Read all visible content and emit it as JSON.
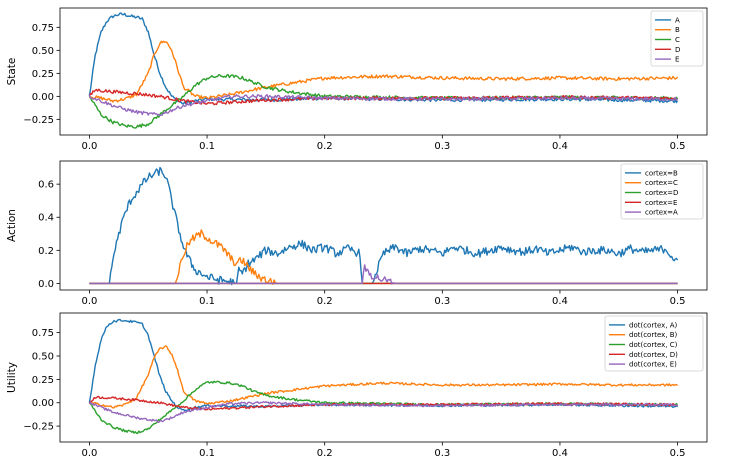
{
  "colors": [
    "#1f77b4",
    "#ff7f0e",
    "#2ca02c",
    "#d62728",
    "#9467bd"
  ],
  "chart_data": [
    {
      "type": "line",
      "ylabel": "State",
      "xlim": [
        -0.025,
        0.525
      ],
      "ylim": [
        -0.42,
        0.96
      ],
      "xticks": [
        0.0,
        0.1,
        0.2,
        0.3,
        0.4,
        0.5
      ],
      "xtick_labels": [
        "0.0",
        "0.1",
        "0.2",
        "0.3",
        "0.4",
        "0.5"
      ],
      "yticks": [
        -0.25,
        0.0,
        0.25,
        0.5,
        0.75
      ],
      "ytick_labels": [
        "−0.25",
        "0.00",
        "0.25",
        "0.50",
        "0.75"
      ],
      "legend_position": "top-right",
      "series": [
        {
          "name": "A",
          "x": [
            0.0,
            0.005,
            0.01,
            0.015,
            0.02,
            0.025,
            0.03,
            0.035,
            0.04,
            0.045,
            0.05,
            0.055,
            0.06,
            0.065,
            0.07,
            0.075,
            0.08,
            0.09,
            0.1,
            0.15,
            0.2,
            0.3,
            0.4,
            0.5
          ],
          "values": [
            0.0,
            0.45,
            0.7,
            0.82,
            0.87,
            0.89,
            0.89,
            0.87,
            0.86,
            0.84,
            0.7,
            0.45,
            0.25,
            0.1,
            0.0,
            -0.05,
            -0.08,
            -0.05,
            -0.03,
            -0.04,
            -0.02,
            -0.04,
            -0.03,
            -0.05
          ]
        },
        {
          "name": "B",
          "x": [
            0.0,
            0.01,
            0.02,
            0.03,
            0.04,
            0.05,
            0.055,
            0.06,
            0.065,
            0.07,
            0.075,
            0.08,
            0.09,
            0.1,
            0.12,
            0.15,
            0.2,
            0.25,
            0.3,
            0.35,
            0.4,
            0.45,
            0.5
          ],
          "values": [
            0.0,
            -0.02,
            -0.05,
            -0.03,
            0.02,
            0.25,
            0.45,
            0.58,
            0.6,
            0.5,
            0.3,
            0.1,
            0.0,
            -0.02,
            0.02,
            0.1,
            0.2,
            0.22,
            0.2,
            0.19,
            0.2,
            0.19,
            0.2
          ]
        },
        {
          "name": "C",
          "x": [
            0.0,
            0.01,
            0.02,
            0.03,
            0.04,
            0.05,
            0.06,
            0.07,
            0.08,
            0.09,
            0.1,
            0.11,
            0.12,
            0.13,
            0.14,
            0.15,
            0.17,
            0.2,
            0.3,
            0.4,
            0.5
          ],
          "values": [
            0.0,
            -0.2,
            -0.28,
            -0.32,
            -0.33,
            -0.3,
            -0.2,
            -0.1,
            0.0,
            0.12,
            0.2,
            0.22,
            0.22,
            0.2,
            0.15,
            0.1,
            0.05,
            0.0,
            -0.02,
            -0.01,
            -0.02
          ]
        },
        {
          "name": "D",
          "x": [
            0.0,
            0.005,
            0.02,
            0.04,
            0.06,
            0.08,
            0.1,
            0.15,
            0.2,
            0.3,
            0.4,
            0.5
          ],
          "values": [
            0.0,
            0.07,
            0.05,
            0.03,
            0.0,
            -0.05,
            -0.08,
            -0.04,
            -0.02,
            -0.02,
            -0.01,
            -0.02
          ]
        },
        {
          "name": "E",
          "x": [
            0.0,
            0.01,
            0.02,
            0.03,
            0.04,
            0.05,
            0.06,
            0.07,
            0.08,
            0.1,
            0.12,
            0.15,
            0.2,
            0.3,
            0.4,
            0.5
          ],
          "values": [
            0.0,
            -0.05,
            -0.1,
            -0.14,
            -0.17,
            -0.19,
            -0.2,
            -0.15,
            -0.1,
            -0.05,
            0.0,
            0.0,
            -0.02,
            -0.03,
            -0.02,
            -0.03
          ]
        }
      ]
    },
    {
      "type": "line",
      "ylabel": "Action",
      "xlim": [
        -0.025,
        0.525
      ],
      "ylim": [
        -0.04,
        0.74
      ],
      "xticks": [
        0.0,
        0.1,
        0.2,
        0.3,
        0.4,
        0.5
      ],
      "xtick_labels": [
        "0.0",
        "0.1",
        "0.2",
        "0.3",
        "0.4",
        "0.5"
      ],
      "yticks": [
        0.0,
        0.2,
        0.4,
        0.6
      ],
      "ytick_labels": [
        "0.0",
        "0.2",
        "0.4",
        "0.6"
      ],
      "legend_position": "top-right",
      "series": [
        {
          "name": "cortex=B",
          "x": [
            0.0,
            0.017,
            0.018,
            0.02,
            0.025,
            0.03,
            0.035,
            0.04,
            0.045,
            0.05,
            0.055,
            0.06,
            0.065,
            0.07,
            0.075,
            0.08,
            0.085,
            0.09,
            0.1,
            0.11,
            0.12,
            0.125,
            0.127,
            0.13,
            0.135,
            0.14,
            0.15,
            0.16,
            0.17,
            0.18,
            0.19,
            0.2,
            0.21,
            0.22,
            0.23,
            0.232,
            0.24,
            0.25,
            0.26,
            0.27,
            0.28,
            0.29,
            0.3,
            0.31,
            0.32,
            0.33,
            0.34,
            0.35,
            0.36,
            0.37,
            0.38,
            0.39,
            0.4,
            0.41,
            0.42,
            0.43,
            0.44,
            0.45,
            0.46,
            0.47,
            0.48,
            0.49,
            0.5
          ],
          "values": [
            0.0,
            0.0,
            0.05,
            0.15,
            0.3,
            0.42,
            0.5,
            0.55,
            0.6,
            0.64,
            0.66,
            0.68,
            0.65,
            0.5,
            0.35,
            0.22,
            0.14,
            0.08,
            0.04,
            0.02,
            0.01,
            0.0,
            0.08,
            0.06,
            0.12,
            0.14,
            0.2,
            0.18,
            0.22,
            0.24,
            0.2,
            0.22,
            0.18,
            0.21,
            0.18,
            0.0,
            0.0,
            0.18,
            0.22,
            0.18,
            0.21,
            0.2,
            0.18,
            0.22,
            0.2,
            0.18,
            0.2,
            0.22,
            0.2,
            0.19,
            0.21,
            0.18,
            0.2,
            0.22,
            0.19,
            0.2,
            0.2,
            0.18,
            0.21,
            0.19,
            0.2,
            0.21,
            0.12
          ]
        },
        {
          "name": "cortex=C",
          "x": [
            0.0,
            0.073,
            0.075,
            0.08,
            0.085,
            0.09,
            0.095,
            0.1,
            0.105,
            0.11,
            0.115,
            0.12,
            0.125,
            0.13,
            0.135,
            0.14,
            0.15,
            0.16,
            0.17,
            0.5
          ],
          "values": [
            0.0,
            0.0,
            0.05,
            0.18,
            0.25,
            0.28,
            0.3,
            0.28,
            0.25,
            0.23,
            0.2,
            0.15,
            0.12,
            0.14,
            0.1,
            0.06,
            0.02,
            0.0,
            0.0,
            0.0
          ]
        },
        {
          "name": "cortex=D",
          "x": [
            0.0,
            0.5
          ],
          "values": [
            0.0,
            0.0
          ]
        },
        {
          "name": "cortex=E",
          "x": [
            0.0,
            0.5
          ],
          "values": [
            0.0,
            0.0
          ]
        },
        {
          "name": "cortex=A",
          "x": [
            0.0,
            0.232,
            0.234,
            0.24,
            0.25,
            0.26,
            0.5
          ],
          "values": [
            0.0,
            0.0,
            0.09,
            0.05,
            0.02,
            0.0,
            0.0
          ]
        }
      ]
    },
    {
      "type": "line",
      "ylabel": "Utility",
      "xlim": [
        -0.025,
        0.525
      ],
      "ylim": [
        -0.42,
        0.96
      ],
      "xticks": [
        0.0,
        0.1,
        0.2,
        0.3,
        0.4,
        0.5
      ],
      "xtick_labels": [
        "0.0",
        "0.1",
        "0.2",
        "0.3",
        "0.4",
        "0.5"
      ],
      "yticks": [
        -0.25,
        0.0,
        0.25,
        0.5,
        0.75
      ],
      "ytick_labels": [
        "−0.25",
        "0.00",
        "0.25",
        "0.50",
        "0.75"
      ],
      "legend_position": "top-right",
      "series": [
        {
          "name": "dot(cortex, A)",
          "x": [
            0.0,
            0.005,
            0.01,
            0.015,
            0.02,
            0.025,
            0.03,
            0.035,
            0.04,
            0.045,
            0.05,
            0.055,
            0.06,
            0.065,
            0.07,
            0.075,
            0.08,
            0.09,
            0.1,
            0.15,
            0.2,
            0.3,
            0.4,
            0.5
          ],
          "values": [
            0.0,
            0.4,
            0.68,
            0.82,
            0.87,
            0.88,
            0.88,
            0.87,
            0.86,
            0.84,
            0.72,
            0.5,
            0.28,
            0.12,
            0.02,
            -0.05,
            -0.08,
            -0.05,
            -0.03,
            -0.04,
            -0.02,
            -0.03,
            -0.02,
            -0.04
          ]
        },
        {
          "name": "dot(cortex, B)",
          "x": [
            0.0,
            0.01,
            0.02,
            0.03,
            0.04,
            0.05,
            0.055,
            0.06,
            0.065,
            0.07,
            0.075,
            0.08,
            0.09,
            0.1,
            0.12,
            0.15,
            0.2,
            0.25,
            0.3,
            0.35,
            0.4,
            0.45,
            0.5
          ],
          "values": [
            0.0,
            -0.02,
            -0.05,
            -0.02,
            0.05,
            0.3,
            0.48,
            0.58,
            0.6,
            0.52,
            0.35,
            0.12,
            0.02,
            -0.01,
            0.02,
            0.1,
            0.18,
            0.21,
            0.19,
            0.19,
            0.2,
            0.19,
            0.19
          ]
        },
        {
          "name": "dot(cortex, C)",
          "x": [
            0.0,
            0.01,
            0.02,
            0.03,
            0.04,
            0.05,
            0.06,
            0.07,
            0.08,
            0.09,
            0.1,
            0.11,
            0.12,
            0.13,
            0.14,
            0.15,
            0.17,
            0.2,
            0.3,
            0.4,
            0.5
          ],
          "values": [
            0.0,
            -0.18,
            -0.26,
            -0.3,
            -0.32,
            -0.28,
            -0.18,
            -0.08,
            0.02,
            0.14,
            0.22,
            0.22,
            0.21,
            0.18,
            0.12,
            0.08,
            0.04,
            0.0,
            -0.02,
            -0.01,
            -0.02
          ]
        },
        {
          "name": "dot(cortex, D)",
          "x": [
            0.0,
            0.005,
            0.02,
            0.04,
            0.06,
            0.08,
            0.1,
            0.15,
            0.2,
            0.3,
            0.4,
            0.5
          ],
          "values": [
            0.0,
            0.06,
            0.05,
            0.03,
            0.0,
            -0.05,
            -0.07,
            -0.04,
            -0.02,
            -0.02,
            -0.01,
            -0.02
          ]
        },
        {
          "name": "dot(cortex, E)",
          "x": [
            0.0,
            0.01,
            0.02,
            0.03,
            0.04,
            0.05,
            0.06,
            0.07,
            0.08,
            0.1,
            0.12,
            0.15,
            0.2,
            0.3,
            0.4,
            0.5
          ],
          "values": [
            0.0,
            -0.05,
            -0.1,
            -0.13,
            -0.16,
            -0.18,
            -0.2,
            -0.16,
            -0.1,
            -0.05,
            -0.01,
            0.0,
            -0.02,
            -0.03,
            -0.02,
            -0.02
          ]
        }
      ]
    }
  ]
}
